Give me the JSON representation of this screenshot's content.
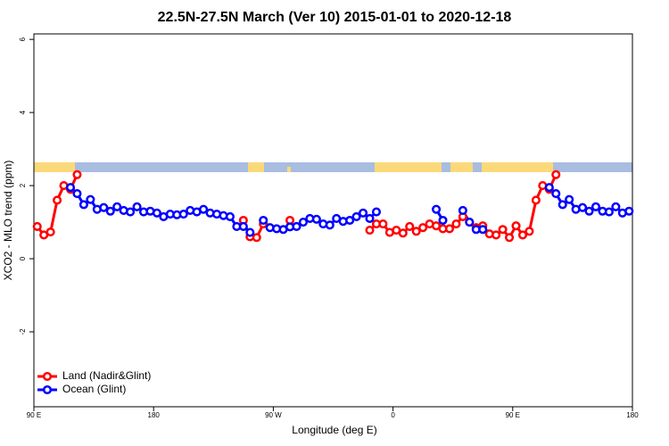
{
  "chart_data": {
    "type": "line",
    "title": "22.5N-27.5N March (Ver 10)   2015-01-01 to 2020-12-18",
    "x_label": "Longitude (deg E)",
    "y_label": "XCO2 - MLO trend (ppm)",
    "x": [
      92.5,
      97.5,
      102.5,
      107.5,
      112.5,
      117.5,
      122.5,
      127.5,
      132.5,
      137.5,
      142.5,
      147.5,
      152.5,
      157.5,
      162.5,
      167.5,
      172.5,
      177.5,
      182.5,
      187.5,
      192.5,
      197.5,
      202.5,
      207.5,
      212.5,
      217.5,
      222.5,
      227.5,
      232.5,
      237.5,
      242.5,
      247.5,
      252.5,
      257.5,
      262.5,
      267.5,
      272.5,
      277.5,
      282.5,
      287.5,
      292.5,
      297.5,
      302.5,
      307.5,
      312.5,
      317.5,
      322.5,
      327.5,
      332.5,
      337.5,
      342.5,
      347.5,
      352.5,
      357.5,
      362.5,
      367.5,
      372.5,
      377.5,
      382.5,
      387.5,
      392.5,
      397.5,
      402.5,
      407.5,
      412.5,
      417.5,
      422.5,
      427.5,
      432.5,
      437.5,
      442.5,
      447.5,
      452.5,
      457.5,
      462.5,
      467.5,
      472.5,
      477.5,
      482.5,
      487.5,
      492.5,
      497.5,
      502.5,
      507.5,
      512.5,
      517.5,
      522.5,
      527.5,
      532.5,
      537.5
    ],
    "series": [
      {
        "name": "Land (Nadir&Glint)",
        "color": "#ff0000",
        "values": [
          0.88,
          0.65,
          0.73,
          1.6,
          2.0,
          1.9,
          2.3,
          null,
          null,
          null,
          null,
          null,
          null,
          null,
          null,
          null,
          null,
          null,
          null,
          null,
          null,
          null,
          null,
          null,
          null,
          null,
          null,
          null,
          null,
          null,
          null,
          1.05,
          0.6,
          0.58,
          0.95,
          null,
          null,
          null,
          1.05,
          null,
          null,
          null,
          null,
          null,
          null,
          null,
          null,
          null,
          null,
          null,
          0.78,
          0.95,
          0.95,
          0.72,
          0.78,
          0.7,
          0.88,
          0.75,
          0.85,
          0.95,
          0.9,
          0.82,
          0.82,
          0.95,
          1.15,
          1.0,
          0.85,
          0.9,
          0.68,
          0.65,
          0.8,
          0.58,
          0.9,
          0.65,
          0.75,
          1.6,
          2.0,
          1.9,
          2.3,
          null,
          null,
          null,
          null,
          null,
          null,
          null,
          null,
          null,
          null,
          null
        ]
      },
      {
        "name": "Ocean (Glint)",
        "color": "#0000ff",
        "values": [
          null,
          null,
          null,
          null,
          null,
          1.95,
          1.78,
          1.48,
          1.62,
          1.35,
          1.4,
          1.3,
          1.42,
          1.32,
          1.28,
          1.42,
          1.28,
          1.3,
          1.25,
          1.15,
          1.22,
          1.2,
          1.22,
          1.32,
          1.28,
          1.35,
          1.25,
          1.22,
          1.18,
          1.15,
          0.88,
          0.88,
          0.72,
          null,
          1.05,
          0.85,
          0.82,
          0.8,
          0.87,
          0.88,
          1.0,
          1.1,
          1.08,
          0.95,
          0.92,
          1.1,
          1.02,
          1.05,
          1.15,
          1.25,
          1.1,
          1.28,
          null,
          null,
          null,
          null,
          null,
          null,
          null,
          null,
          1.35,
          1.05,
          null,
          null,
          1.32,
          1.0,
          0.8,
          0.8,
          null,
          null,
          null,
          null,
          null,
          null,
          null,
          null,
          null,
          1.95,
          1.78,
          1.48,
          1.62,
          1.35,
          1.4,
          1.3,
          1.42,
          1.3,
          1.28,
          1.42,
          1.25,
          1.3
        ]
      }
    ],
    "xlim": [
      90,
      540
    ],
    "xticks": [
      {
        "value": 90,
        "label": "90 E"
      },
      180,
      {
        "value": 270,
        "label": "90 W"
      },
      {
        "value": 360,
        "label": "0"
      },
      {
        "value": 450,
        "label": "90 E"
      },
      {
        "value": 540,
        "label": "180"
      }
    ],
    "ylim": [
      -4.05,
      6.15
    ],
    "yticks": [
      -2,
      0,
      2,
      4,
      6
    ],
    "legend": "bottom-left"
  }
}
